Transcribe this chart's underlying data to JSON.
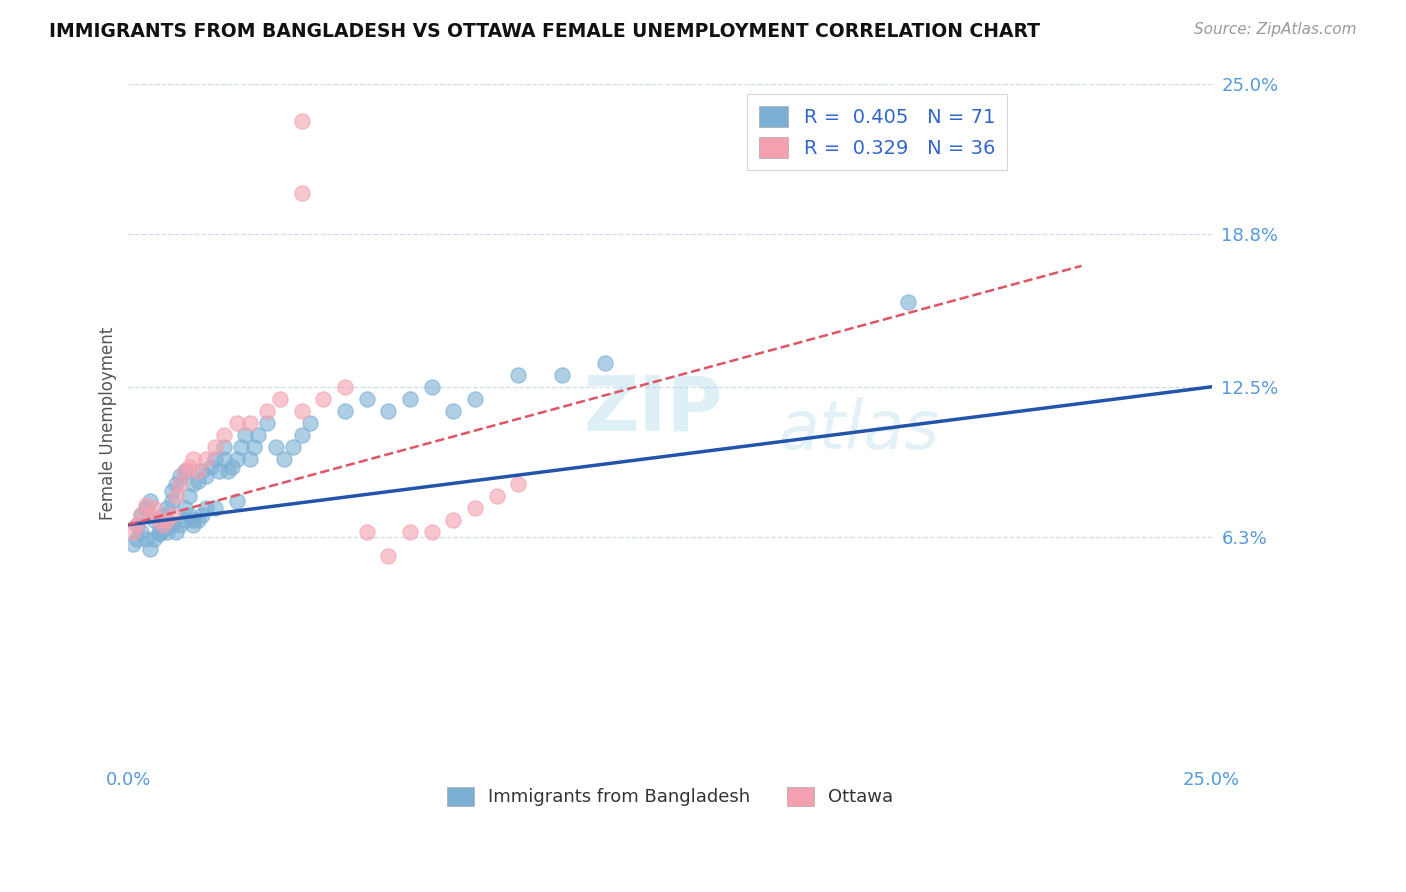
{
  "title": "IMMIGRANTS FROM BANGLADESH VS OTTAWA FEMALE UNEMPLOYMENT CORRELATION CHART",
  "source_text": "Source: ZipAtlas.com",
  "ylabel": "Female Unemployment",
  "xmin": 0.0,
  "xmax": 0.25,
  "ymin": -0.03,
  "ymax": 0.25,
  "yticks": [
    0.063,
    0.125,
    0.188,
    0.25
  ],
  "ytick_labels": [
    "6.3%",
    "12.5%",
    "18.8%",
    "25.0%"
  ],
  "xtick_labels": [
    "0.0%",
    "25.0%"
  ],
  "xticks": [
    0.0,
    0.25
  ],
  "legend_entry1": "R =  0.405   N = 71",
  "legend_entry2": "R =  0.329   N = 36",
  "legend_label1": "Immigrants from Bangladesh",
  "legend_label2": "Ottawa",
  "blue_color": "#7BAFD4",
  "pink_color": "#F4A0B0",
  "blue_line_color": "#2255AA",
  "pink_line_color": "#DD5566",
  "grid_color": "#CCDDEE",
  "blue_R": 0.405,
  "blue_N": 71,
  "pink_R": 0.329,
  "pink_N": 36,
  "blue_line_x": [
    0.0,
    0.25
  ],
  "blue_line_y": [
    0.068,
    0.125
  ],
  "pink_line_x": [
    0.0,
    0.22
  ],
  "pink_line_y": [
    0.068,
    0.175
  ],
  "blue_x": [
    0.002,
    0.003,
    0.004,
    0.005,
    0.006,
    0.007,
    0.008,
    0.008,
    0.009,
    0.01,
    0.01,
    0.011,
    0.012,
    0.013,
    0.013,
    0.014,
    0.015,
    0.015,
    0.016,
    0.017,
    0.018,
    0.019,
    0.02,
    0.021,
    0.022,
    0.022,
    0.023,
    0.024,
    0.025,
    0.026,
    0.027,
    0.028,
    0.029,
    0.03,
    0.032,
    0.034,
    0.036,
    0.038,
    0.04,
    0.042,
    0.05,
    0.055,
    0.06,
    0.065,
    0.07,
    0.075,
    0.08,
    0.09,
    0.1,
    0.11,
    0.001,
    0.002,
    0.003,
    0.004,
    0.005,
    0.006,
    0.007,
    0.008,
    0.009,
    0.01,
    0.011,
    0.012,
    0.013,
    0.014,
    0.015,
    0.016,
    0.017,
    0.018,
    0.02,
    0.025,
    0.18
  ],
  "blue_y": [
    0.068,
    0.072,
    0.075,
    0.078,
    0.07,
    0.065,
    0.068,
    0.072,
    0.075,
    0.078,
    0.082,
    0.085,
    0.088,
    0.09,
    0.075,
    0.08,
    0.085,
    0.07,
    0.086,
    0.09,
    0.088,
    0.092,
    0.095,
    0.09,
    0.1,
    0.095,
    0.09,
    0.092,
    0.095,
    0.1,
    0.105,
    0.095,
    0.1,
    0.105,
    0.11,
    0.1,
    0.095,
    0.1,
    0.105,
    0.11,
    0.115,
    0.12,
    0.115,
    0.12,
    0.125,
    0.115,
    0.12,
    0.13,
    0.13,
    0.135,
    0.06,
    0.062,
    0.065,
    0.062,
    0.058,
    0.062,
    0.064,
    0.066,
    0.065,
    0.068,
    0.065,
    0.068,
    0.07,
    0.072,
    0.068,
    0.07,
    0.072,
    0.075,
    0.075,
    0.078,
    0.16
  ],
  "pink_x": [
    0.001,
    0.002,
    0.003,
    0.004,
    0.005,
    0.006,
    0.007,
    0.008,
    0.009,
    0.01,
    0.011,
    0.012,
    0.013,
    0.014,
    0.015,
    0.016,
    0.018,
    0.02,
    0.022,
    0.025,
    0.028,
    0.032,
    0.035,
    0.04,
    0.045,
    0.05,
    0.055,
    0.06,
    0.065,
    0.07,
    0.075,
    0.08,
    0.085,
    0.09,
    0.04,
    0.04
  ],
  "pink_y": [
    0.065,
    0.068,
    0.072,
    0.076,
    0.072,
    0.075,
    0.07,
    0.068,
    0.07,
    0.072,
    0.08,
    0.085,
    0.09,
    0.092,
    0.095,
    0.09,
    0.095,
    0.1,
    0.105,
    0.11,
    0.11,
    0.115,
    0.12,
    0.115,
    0.12,
    0.125,
    0.065,
    0.055,
    0.065,
    0.065,
    0.07,
    0.075,
    0.08,
    0.085,
    0.235,
    0.205
  ]
}
